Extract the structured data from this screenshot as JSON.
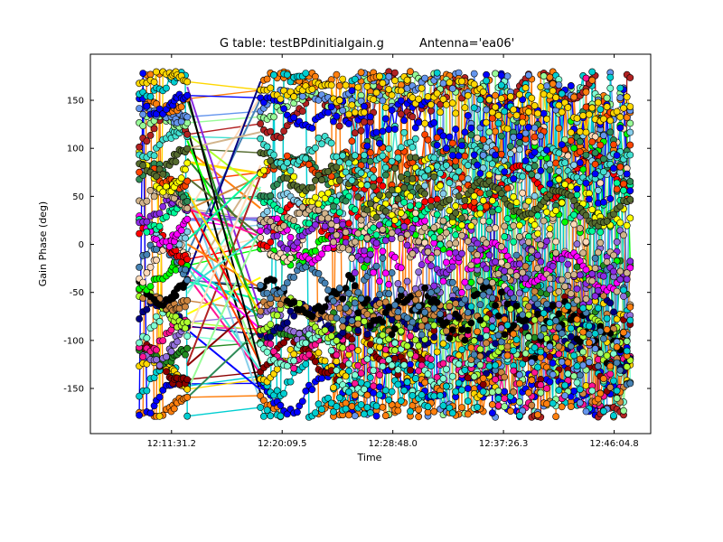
{
  "chart_data": {
    "type": "scatter",
    "title": "G table: testBPdinitialgain.g",
    "antenna_label": "Antenna='ea06'",
    "xlabel": "Time",
    "ylabel": "Gain Phase (deg)",
    "x_ticks": [
      "12:11:31.2",
      "12:20:09.5",
      "12:28:48.0",
      "12:37:26.3",
      "12:46:04.8"
    ],
    "x_tick_seconds": [
      43891.2,
      44409.5,
      44928.0,
      45446.3,
      45964.8
    ],
    "xlim_seconds": [
      43511.0,
      46136.0
    ],
    "y_ticks": [
      -150,
      -100,
      -50,
      0,
      50,
      100,
      150
    ],
    "ylim": [
      -197,
      198
    ],
    "markers_connected": true,
    "scans": [
      {
        "start_seconds": 43740,
        "end_seconds": 43810
      },
      {
        "start_seconds": 43820,
        "end_seconds": 43882
      },
      {
        "start_seconds": 43890,
        "end_seconds": 43918
      },
      {
        "start_seconds": 43928,
        "end_seconds": 43965
      },
      {
        "start_seconds": 44308,
        "end_seconds": 44480
      },
      {
        "start_seconds": 44490,
        "end_seconds": 44640
      },
      {
        "start_seconds": 44650,
        "end_seconds": 45010
      },
      {
        "start_seconds": 45020,
        "end_seconds": 45280
      },
      {
        "start_seconds": 45295,
        "end_seconds": 45890
      },
      {
        "start_seconds": 45900,
        "end_seconds": 46040
      }
    ],
    "series_colors": [
      "#ff7f0e",
      "#0000ff",
      "#00ced1",
      "#ffd700",
      "#8b0000",
      "#228b22",
      "#9370db",
      "#ff1493",
      "#7fffd4",
      "#000080",
      "#adff2f",
      "#cd853f",
      "#000000",
      "#00ff00",
      "#ffdab9",
      "#4682b4",
      "#ff0000",
      "#87ceeb",
      "#ff00ff",
      "#00fa9a",
      "#8a2be2",
      "#d2b48c",
      "#2e8b57",
      "#ff4500",
      "#ffff00",
      "#556b2f",
      "#40e0d0",
      "#b22222",
      "#98fb98",
      "#6495ed"
    ]
  }
}
